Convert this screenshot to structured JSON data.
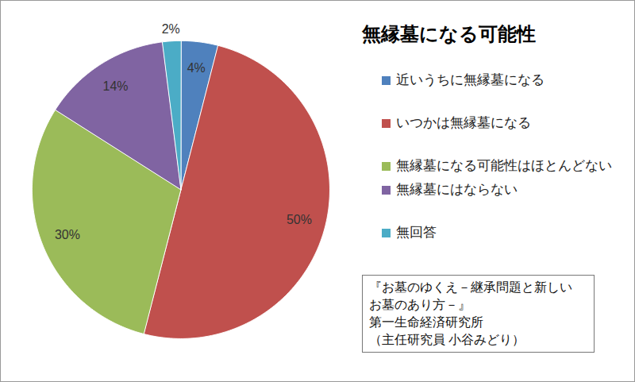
{
  "chart_data": {
    "type": "pie",
    "title": "無縁墓になる可能性",
    "categories": [
      "近いうちに無縁墓になる",
      "いつかは無縁墓になる",
      "無縁墓になる可能性はほとんどない",
      "無縁墓にはならない",
      "無回答"
    ],
    "values": [
      4,
      50,
      30,
      14,
      2
    ],
    "value_labels": [
      "4%",
      "50%",
      "30%",
      "14%",
      "2%"
    ],
    "colors": [
      "#4f81bd",
      "#c0504d",
      "#9bbb59",
      "#8064a2",
      "#4bacc6"
    ],
    "data_labels": true,
    "legend": "right",
    "annotations": [
      "『お墓のゆくえ－継承問題と新しい",
      "お墓のあり方－』",
      "第一生命経済研究所",
      "（主任研究員 小谷みどり）"
    ]
  }
}
